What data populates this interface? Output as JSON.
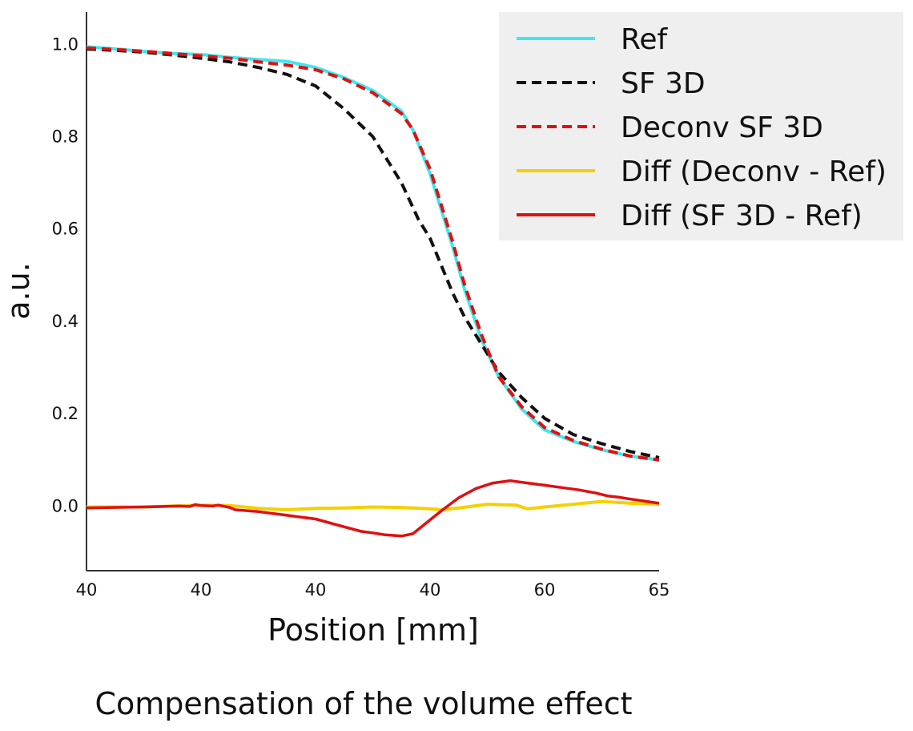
{
  "chart_data": {
    "type": "line",
    "caption": "Compensation of the volume effect",
    "xlabel": "Position [mm]",
    "ylabel": "a.u.",
    "x_tick_labels": [
      "40",
      "40",
      "40",
      "40",
      "60",
      "65"
    ],
    "y_tick_labels": [
      "0.0",
      "0.2",
      "0.4",
      "0.6",
      "0.8",
      "1.0"
    ],
    "y_ticks": [
      0.0,
      0.2,
      0.4,
      0.6,
      0.8,
      1.0
    ],
    "ylim": [
      -0.14,
      1.07
    ],
    "x_range": [
      0,
      5
    ],
    "grid": false,
    "legend_position": "top-right",
    "series": [
      {
        "name": "Ref",
        "color": "#3de8f0",
        "dash": "solid",
        "points": [
          [
            0,
            0.995
          ],
          [
            0.25,
            0.99
          ],
          [
            0.5,
            0.985
          ],
          [
            0.75,
            0.98
          ],
          [
            1.0,
            0.978
          ],
          [
            1.25,
            0.972
          ],
          [
            1.5,
            0.967
          ],
          [
            1.75,
            0.963
          ],
          [
            2.0,
            0.95
          ],
          [
            2.25,
            0.928
          ],
          [
            2.5,
            0.9
          ],
          [
            2.75,
            0.855
          ],
          [
            2.85,
            0.815
          ],
          [
            3.0,
            0.72
          ],
          [
            3.1,
            0.64
          ],
          [
            3.2,
            0.56
          ],
          [
            3.3,
            0.47
          ],
          [
            3.45,
            0.36
          ],
          [
            3.6,
            0.28
          ],
          [
            3.8,
            0.21
          ],
          [
            4.0,
            0.165
          ],
          [
            4.25,
            0.14
          ],
          [
            4.5,
            0.122
          ],
          [
            4.75,
            0.108
          ],
          [
            5.0,
            0.1
          ]
        ]
      },
      {
        "name": "SF 3D",
        "color": "#111111",
        "dash": "dashed",
        "points": [
          [
            0,
            0.99
          ],
          [
            0.25,
            0.987
          ],
          [
            0.5,
            0.983
          ],
          [
            0.75,
            0.977
          ],
          [
            1.0,
            0.97
          ],
          [
            1.25,
            0.962
          ],
          [
            1.5,
            0.95
          ],
          [
            1.75,
            0.935
          ],
          [
            2.0,
            0.91
          ],
          [
            2.25,
            0.86
          ],
          [
            2.5,
            0.8
          ],
          [
            2.75,
            0.7
          ],
          [
            2.9,
            0.62
          ],
          [
            3.0,
            0.58
          ],
          [
            3.1,
            0.52
          ],
          [
            3.2,
            0.46
          ],
          [
            3.3,
            0.41
          ],
          [
            3.45,
            0.35
          ],
          [
            3.6,
            0.29
          ],
          [
            3.8,
            0.235
          ],
          [
            4.0,
            0.19
          ],
          [
            4.25,
            0.155
          ],
          [
            4.5,
            0.135
          ],
          [
            4.75,
            0.118
          ],
          [
            5.0,
            0.105
          ]
        ]
      },
      {
        "name": "Deconv SF 3D",
        "color": "#e01010",
        "dash": "dashed",
        "points": [
          [
            0,
            0.992
          ],
          [
            0.25,
            0.989
          ],
          [
            0.5,
            0.985
          ],
          [
            0.75,
            0.98
          ],
          [
            1.0,
            0.975
          ],
          [
            1.25,
            0.97
          ],
          [
            1.5,
            0.962
          ],
          [
            1.75,
            0.955
          ],
          [
            2.0,
            0.945
          ],
          [
            2.25,
            0.925
          ],
          [
            2.5,
            0.895
          ],
          [
            2.75,
            0.85
          ],
          [
            2.85,
            0.815
          ],
          [
            3.0,
            0.73
          ],
          [
            3.1,
            0.65
          ],
          [
            3.2,
            0.57
          ],
          [
            3.3,
            0.48
          ],
          [
            3.45,
            0.37
          ],
          [
            3.6,
            0.28
          ],
          [
            3.8,
            0.215
          ],
          [
            4.0,
            0.17
          ],
          [
            4.25,
            0.142
          ],
          [
            4.5,
            0.123
          ],
          [
            4.75,
            0.108
          ],
          [
            5.0,
            0.1
          ]
        ]
      },
      {
        "name": "Diff (Deconv - Ref)",
        "color": "#f5d000",
        "dash": "solid",
        "points": [
          [
            0,
            -0.002
          ],
          [
            0.5,
            -0.002
          ],
          [
            1.0,
            0.002
          ],
          [
            1.25,
            0.001
          ],
          [
            1.5,
            -0.005
          ],
          [
            1.75,
            -0.008
          ],
          [
            2.0,
            -0.005
          ],
          [
            2.25,
            -0.004
          ],
          [
            2.5,
            -0.002
          ],
          [
            2.75,
            -0.003
          ],
          [
            3.0,
            -0.006
          ],
          [
            3.1,
            -0.008
          ],
          [
            3.25,
            -0.004
          ],
          [
            3.5,
            0.004
          ],
          [
            3.75,
            0.002
          ],
          [
            3.85,
            -0.006
          ],
          [
            4.0,
            -0.002
          ],
          [
            4.25,
            0.004
          ],
          [
            4.5,
            0.01
          ],
          [
            4.75,
            0.006
          ],
          [
            5.0,
            0.004
          ]
        ]
      },
      {
        "name": "Diff (SF 3D - Ref)",
        "color": "#e01010",
        "dash": "solid",
        "points": [
          [
            0,
            -0.004
          ],
          [
            0.5,
            -0.002
          ],
          [
            0.8,
            0.0
          ],
          [
            0.9,
            -0.001
          ],
          [
            0.95,
            0.003
          ],
          [
            1.0,
            0.001
          ],
          [
            1.1,
            0.0
          ],
          [
            1.15,
            0.002
          ],
          [
            1.25,
            -0.003
          ],
          [
            1.3,
            -0.008
          ],
          [
            1.5,
            -0.012
          ],
          [
            1.75,
            -0.02
          ],
          [
            2.0,
            -0.028
          ],
          [
            2.25,
            -0.045
          ],
          [
            2.4,
            -0.055
          ],
          [
            2.5,
            -0.058
          ],
          [
            2.6,
            -0.062
          ],
          [
            2.75,
            -0.065
          ],
          [
            2.85,
            -0.06
          ],
          [
            3.0,
            -0.03
          ],
          [
            3.1,
            -0.01
          ],
          [
            3.25,
            0.018
          ],
          [
            3.4,
            0.038
          ],
          [
            3.55,
            0.05
          ],
          [
            3.7,
            0.055
          ],
          [
            3.85,
            0.05
          ],
          [
            4.0,
            0.045
          ],
          [
            4.15,
            0.04
          ],
          [
            4.3,
            0.035
          ],
          [
            4.45,
            0.028
          ],
          [
            4.55,
            0.022
          ],
          [
            4.65,
            0.019
          ],
          [
            4.75,
            0.015
          ],
          [
            5.0,
            0.006
          ]
        ]
      }
    ]
  }
}
